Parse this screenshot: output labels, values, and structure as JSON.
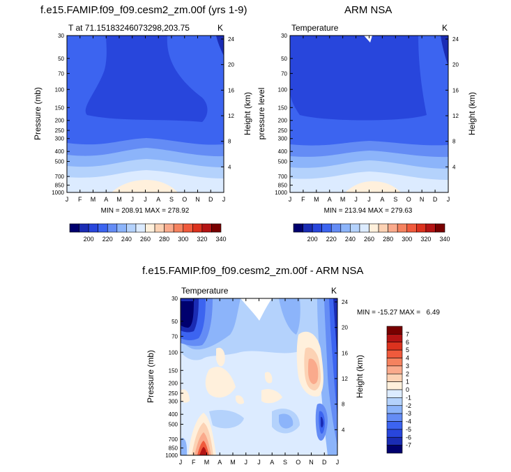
{
  "chart_data": [
    {
      "type": "contour",
      "title": "f.e15.FAMIP.f09_f09.cesm2_zm.00f (yrs 1-9)",
      "left_label": "T at 71.15183246073298,203.75",
      "right_label": "K",
      "ylabel_left": "Pressure (mb)",
      "ylabel_right": "Height (km)",
      "x_ticks": [
        "J",
        "F",
        "M",
        "A",
        "M",
        "J",
        "J",
        "A",
        "S",
        "O",
        "N",
        "D",
        "J"
      ],
      "y_ticks": [
        "30",
        "50",
        "70",
        "100",
        "150",
        "200",
        "250",
        "300",
        "400",
        "500",
        "700",
        "850",
        "1000"
      ],
      "height_ticks": [
        "24",
        "20",
        "16",
        "12",
        "8",
        "4"
      ],
      "stats": "MIN = 208.91 MAX = 278.92",
      "colorbar": {
        "labels": [
          "200",
          "220",
          "240",
          "260",
          "280",
          "300",
          "320",
          "340"
        ],
        "colors": [
          "#00006e",
          "#1a2cb4",
          "#2846dc",
          "#3c64f0",
          "#648cf5",
          "#8cb4fa",
          "#b4d2fc",
          "#dcebff",
          "#fff0dc",
          "#fcd2b4",
          "#faaa8c",
          "#f5825f",
          "#f05a3c",
          "#dc321e",
          "#b41414",
          "#780000"
        ]
      }
    },
    {
      "type": "contour",
      "title": "ARM NSA",
      "left_label": "Temperature",
      "right_label": "K",
      "ylabel_left": "pressure level",
      "ylabel_right": "Height (km)",
      "x_ticks": [
        "J",
        "F",
        "M",
        "A",
        "M",
        "J",
        "J",
        "A",
        "S",
        "O",
        "N",
        "D",
        "J"
      ],
      "y_ticks": [
        "30",
        "50",
        "70",
        "100",
        "150",
        "200",
        "250",
        "300",
        "400",
        "500",
        "700",
        "850",
        "1000"
      ],
      "height_ticks": [
        "24",
        "20",
        "16",
        "12",
        "8",
        "4"
      ],
      "stats": "MIN = 213.94 MAX = 279.63",
      "colorbar": {
        "labels": [
          "200",
          "220",
          "240",
          "260",
          "280",
          "300",
          "320",
          "340"
        ],
        "colors": [
          "#00006e",
          "#1a2cb4",
          "#2846dc",
          "#3c64f0",
          "#648cf5",
          "#8cb4fa",
          "#b4d2fc",
          "#dcebff",
          "#fff0dc",
          "#fcd2b4",
          "#faaa8c",
          "#f5825f",
          "#f05a3c",
          "#dc321e",
          "#b41414",
          "#780000"
        ]
      }
    },
    {
      "type": "contour",
      "title": "f.e15.FAMIP.f09_f09.cesm2_zm.00f - ARM NSA",
      "left_label": "Temperature",
      "right_label": "K",
      "ylabel_left": "Pressure (mb)",
      "ylabel_right": "Height (km)",
      "x_ticks": [
        "J",
        "F",
        "M",
        "A",
        "M",
        "J",
        "J",
        "A",
        "S",
        "O",
        "N",
        "D",
        "J"
      ],
      "y_ticks": [
        "30",
        "50",
        "70",
        "100",
        "150",
        "200",
        "250",
        "300",
        "400",
        "500",
        "700",
        "850",
        "1000"
      ],
      "height_ticks": [
        "24",
        "20",
        "16",
        "12",
        "8",
        "4"
      ],
      "stats": "MIN = -15.27 MAX =   6.49",
      "colorbar": {
        "labels": [
          "7",
          "6",
          "5",
          "4",
          "3",
          "2",
          "1",
          "0",
          "-1",
          "-2",
          "-3",
          "-4",
          "-5",
          "-6",
          "-7"
        ],
        "colors": [
          "#780000",
          "#b41414",
          "#dc321e",
          "#f05a3c",
          "#f5825f",
          "#faaa8c",
          "#fcd2b4",
          "#fff0dc",
          "#dcebff",
          "#b4d2fc",
          "#8cb4fa",
          "#648cf5",
          "#3c64f0",
          "#2846dc",
          "#1a2cb4",
          "#00006e"
        ]
      }
    }
  ]
}
